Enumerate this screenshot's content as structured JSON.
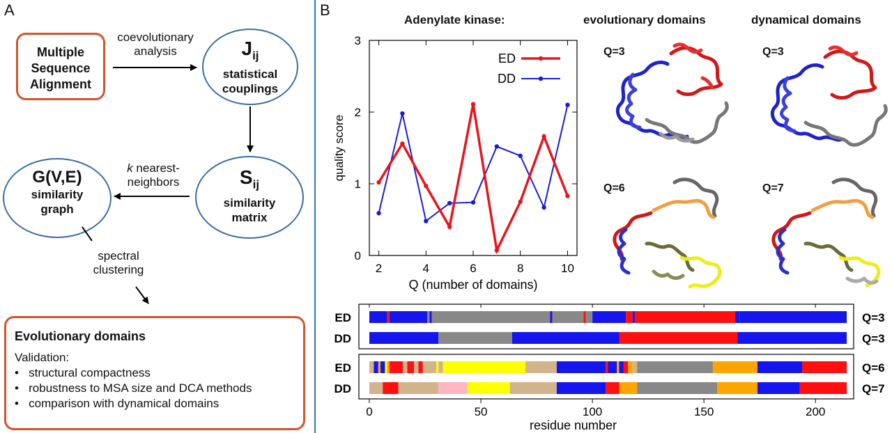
{
  "panel_a": {
    "letter": "A",
    "msa": "Multiple Sequence Alignment",
    "coevo_label_1": "coevolutionary",
    "coevo_label_2": "analysis",
    "jij_symbol": "J",
    "jij_sub": "ij",
    "jij_text": "statistical couplings",
    "sij_symbol": "S",
    "sij_sub": "ij",
    "sij_text": "similarity matrix",
    "knn_k": "k",
    "knn_text_1": " nearest-",
    "knn_text_2": "neighbors",
    "graph_symbol": "G(V,E)",
    "graph_text": "similarity graph",
    "spectral_1": "spectral",
    "spectral_2": "clustering",
    "evo_title": "Evolutionary domains",
    "validation": "Validation:",
    "bullets": [
      "structural compactness",
      "robustness to MSA size and DCA methods",
      "comparison with dynamical domains"
    ]
  },
  "panel_b": {
    "letter": "B",
    "protein": "Adenylate kinase:",
    "hdr_evo": "evolutionary domains",
    "hdr_dyn": "dynamical domains",
    "q_labels": [
      "Q=3",
      "Q=3",
      "Q=6",
      "Q=7"
    ]
  },
  "colors": {
    "ed": "#e8141b",
    "dd": "#1b1bd6",
    "blue": "#1515ee",
    "grey": "#888888",
    "red": "#ff1010",
    "tan": "#d2b48c",
    "yellow": "#ffff00",
    "orange": "#ffa500",
    "pink": "#ffb6c1",
    "accent_box": "#d2542a",
    "ellipse": "#3a6e9e"
  },
  "chart_data": {
    "type": "line",
    "xlabel": "Q (number of domains)",
    "ylabel": "quality score",
    "x": [
      2,
      3,
      4,
      5,
      6,
      7,
      8,
      9,
      10
    ],
    "xlim": [
      1.6,
      10.4
    ],
    "ylim": [
      0,
      3
    ],
    "xticks": [
      2,
      4,
      6,
      8,
      10
    ],
    "yticks": [
      0,
      1,
      2,
      3
    ],
    "legend_position": "top-right",
    "series": [
      {
        "name": "ED",
        "color": "#e8141b",
        "values": [
          1.02,
          1.56,
          0.97,
          0.4,
          2.11,
          0.07,
          0.75,
          1.66,
          0.83
        ]
      },
      {
        "name": "DD",
        "color": "#1b1bd6",
        "values": [
          0.59,
          1.98,
          0.48,
          0.73,
          0.74,
          1.52,
          1.39,
          0.67,
          2.1
        ]
      }
    ]
  },
  "domain_bars": {
    "xlabel": "residue number",
    "xticks": [
      0,
      50,
      100,
      150,
      200
    ],
    "max_residue": 214,
    "groups": [
      {
        "rows": [
          {
            "label": "ED",
            "q": "Q=3",
            "segments": [
              {
                "s": 0,
                "e": 8,
                "c": "blue"
              },
              {
                "s": 8,
                "e": 9,
                "c": "red"
              },
              {
                "s": 9,
                "e": 26,
                "c": "blue"
              },
              {
                "s": 26,
                "e": 27,
                "c": "grey"
              },
              {
                "s": 27,
                "e": 28,
                "c": "blue"
              },
              {
                "s": 28,
                "e": 81,
                "c": "grey"
              },
              {
                "s": 81,
                "e": 82,
                "c": "blue"
              },
              {
                "s": 82,
                "e": 96,
                "c": "grey"
              },
              {
                "s": 96,
                "e": 97,
                "c": "red"
              },
              {
                "s": 97,
                "e": 100,
                "c": "grey"
              },
              {
                "s": 100,
                "e": 115,
                "c": "blue"
              },
              {
                "s": 115,
                "e": 118,
                "c": "red"
              },
              {
                "s": 118,
                "e": 119,
                "c": "blue"
              },
              {
                "s": 119,
                "e": 164,
                "c": "red"
              },
              {
                "s": 164,
                "e": 166,
                "c": "blue"
              },
              {
                "s": 166,
                "e": 214,
                "c": "blue"
              }
            ]
          },
          {
            "label": "DD",
            "q": "Q=3",
            "segments": [
              {
                "s": 0,
                "e": 31,
                "c": "blue"
              },
              {
                "s": 31,
                "e": 64,
                "c": "grey"
              },
              {
                "s": 64,
                "e": 112,
                "c": "blue"
              },
              {
                "s": 112,
                "e": 165,
                "c": "red"
              },
              {
                "s": 165,
                "e": 214,
                "c": "blue"
              }
            ]
          }
        ]
      },
      {
        "rows": [
          {
            "label": "ED",
            "q": "Q=6",
            "segments": [
              {
                "s": 0,
                "e": 2,
                "c": "tan"
              },
              {
                "s": 2,
                "e": 4,
                "c": "blue"
              },
              {
                "s": 4,
                "e": 5,
                "c": "orange"
              },
              {
                "s": 5,
                "e": 7,
                "c": "blue"
              },
              {
                "s": 7,
                "e": 8,
                "c": "yellow"
              },
              {
                "s": 8,
                "e": 9,
                "c": "orange"
              },
              {
                "s": 9,
                "e": 15,
                "c": "red"
              },
              {
                "s": 15,
                "e": 17,
                "c": "tan"
              },
              {
                "s": 17,
                "e": 20,
                "c": "red"
              },
              {
                "s": 20,
                "e": 22,
                "c": "tan"
              },
              {
                "s": 22,
                "e": 24,
                "c": "red"
              },
              {
                "s": 24,
                "e": 30,
                "c": "tan"
              },
              {
                "s": 30,
                "e": 31,
                "c": "yellow"
              },
              {
                "s": 31,
                "e": 33,
                "c": "tan"
              },
              {
                "s": 33,
                "e": 70,
                "c": "yellow"
              },
              {
                "s": 70,
                "e": 84,
                "c": "tan"
              },
              {
                "s": 84,
                "e": 106,
                "c": "blue"
              },
              {
                "s": 106,
                "e": 107,
                "c": "red"
              },
              {
                "s": 107,
                "e": 111,
                "c": "blue"
              },
              {
                "s": 111,
                "e": 112,
                "c": "orange"
              },
              {
                "s": 112,
                "e": 114,
                "c": "blue"
              },
              {
                "s": 114,
                "e": 116,
                "c": "red"
              },
              {
                "s": 116,
                "e": 118,
                "c": "orange"
              },
              {
                "s": 118,
                "e": 120,
                "c": "tan"
              },
              {
                "s": 120,
                "e": 154,
                "c": "grey"
              },
              {
                "s": 154,
                "e": 174,
                "c": "orange"
              },
              {
                "s": 174,
                "e": 194,
                "c": "blue"
              },
              {
                "s": 194,
                "e": 214,
                "c": "red"
              }
            ]
          },
          {
            "label": "DD",
            "q": "Q=7",
            "segments": [
              {
                "s": 0,
                "e": 6,
                "c": "tan"
              },
              {
                "s": 6,
                "e": 13,
                "c": "red"
              },
              {
                "s": 13,
                "e": 31,
                "c": "tan"
              },
              {
                "s": 31,
                "e": 44,
                "c": "pink"
              },
              {
                "s": 44,
                "e": 54,
                "c": "yellow"
              },
              {
                "s": 54,
                "e": 63,
                "c": "yellow"
              },
              {
                "s": 63,
                "e": 84,
                "c": "tan"
              },
              {
                "s": 84,
                "e": 106,
                "c": "blue"
              },
              {
                "s": 106,
                "e": 112,
                "c": "red"
              },
              {
                "s": 112,
                "e": 120,
                "c": "orange"
              },
              {
                "s": 120,
                "e": 156,
                "c": "grey"
              },
              {
                "s": 156,
                "e": 174,
                "c": "orange"
              },
              {
                "s": 174,
                "e": 193,
                "c": "blue"
              },
              {
                "s": 193,
                "e": 214,
                "c": "red"
              }
            ]
          }
        ]
      }
    ]
  }
}
